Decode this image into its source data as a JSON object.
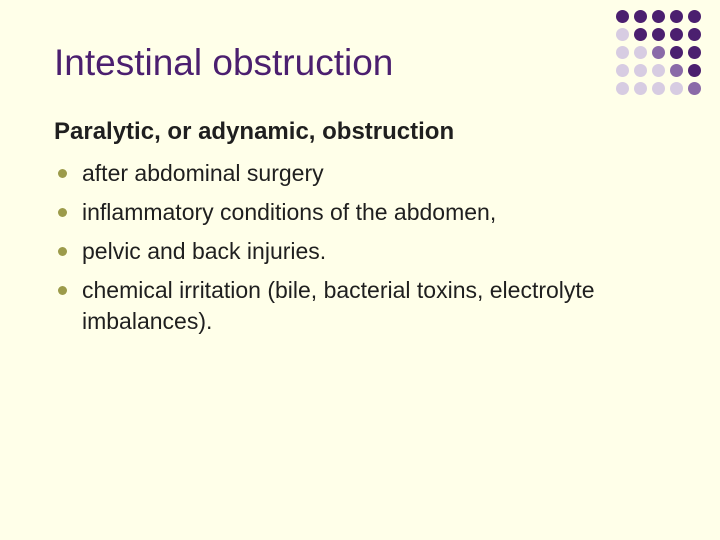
{
  "colors": {
    "background": "#ffffe9",
    "title": "#4b1f6f",
    "text": "#1f1f1f",
    "bullet": "#9c9b4a",
    "dot_dark": "#4b1f6f",
    "dot_mid": "#8a6aa8",
    "dot_light": "#d7cce2"
  },
  "dot_pattern": [
    [
      "dark",
      "dark",
      "dark",
      "dark",
      "dark"
    ],
    [
      "light",
      "dark",
      "dark",
      "dark",
      "dark"
    ],
    [
      "light",
      "light",
      "mid",
      "dark",
      "dark"
    ],
    [
      "light",
      "light",
      "light",
      "mid",
      "dark"
    ],
    [
      "light",
      "light",
      "light",
      "light",
      "mid"
    ]
  ],
  "title": "Intestinal obstruction",
  "subtitle": "Paralytic, or adynamic, obstruction",
  "bullets": [
    "after abdominal surgery",
    "inflammatory conditions of the abdomen,",
    "pelvic and back injuries.",
    "chemical irritation (bile, bacterial toxins, electrolyte imbalances)."
  ]
}
